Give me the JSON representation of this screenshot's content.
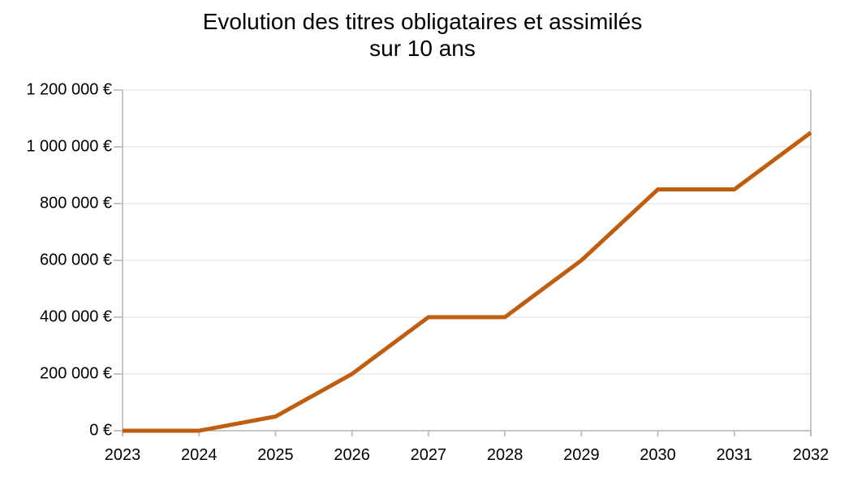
{
  "chart_data": {
    "type": "line",
    "title": "Evolution des titres obligataires et assimilés",
    "subtitle": "sur 10 ans",
    "x": [
      "2023",
      "2024",
      "2025",
      "2026",
      "2027",
      "2028",
      "2029",
      "2030",
      "2031",
      "2032"
    ],
    "values": [
      0,
      0,
      50000,
      200000,
      400000,
      400000,
      600000,
      850000,
      850000,
      1050000
    ],
    "ylim": [
      0,
      1200000
    ],
    "y_ticks": [
      {
        "value": 0,
        "label": "0 €"
      },
      {
        "value": 200000,
        "label": "200 000 €"
      },
      {
        "value": 400000,
        "label": "400 000 €"
      },
      {
        "value": 600000,
        "label": "600 000 €"
      },
      {
        "value": 800000,
        "label": "800 000 €"
      },
      {
        "value": 1000000,
        "label": "1 000 000 €"
      },
      {
        "value": 1200000,
        "label": "1 200 000 €"
      }
    ],
    "xlabel": "",
    "ylabel": "",
    "grid": "horizontal",
    "legend": "none"
  },
  "colors": {
    "series": "#C05E10",
    "gridline": "#D9D9D9",
    "axis": "#B3B3B3",
    "text": "#000000",
    "background": "#FFFFFF"
  }
}
